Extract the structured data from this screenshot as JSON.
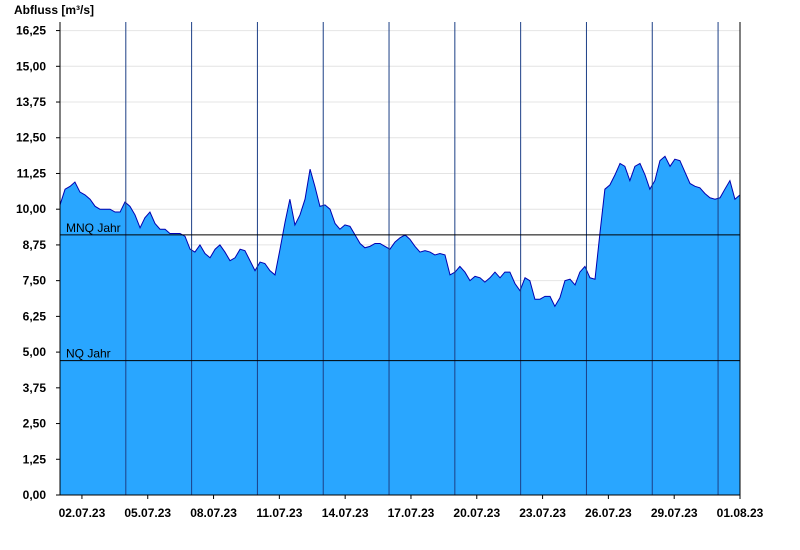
{
  "chart_data": {
    "type": "area",
    "y_axis_label": "Abfluss [m³/s]",
    "color": "#29a6ff",
    "line_color": "#0000b0",
    "grid": true,
    "xlim": [
      0,
      31
    ],
    "ylim": [
      0,
      16.55
    ],
    "xticks": [
      {
        "value": 1,
        "label": "02.07.23"
      },
      {
        "value": 4,
        "label": "05.07.23"
      },
      {
        "value": 7,
        "label": "08.07.23"
      },
      {
        "value": 10,
        "label": "11.07.23"
      },
      {
        "value": 13,
        "label": "14.07.23"
      },
      {
        "value": 16,
        "label": "17.07.23"
      },
      {
        "value": 19,
        "label": "20.07.23"
      },
      {
        "value": 22,
        "label": "23.07.23"
      },
      {
        "value": 25,
        "label": "26.07.23"
      },
      {
        "value": 28,
        "label": "29.07.23"
      },
      {
        "value": 31,
        "label": "01.08.23"
      }
    ],
    "xgrid_lines": [
      3,
      6,
      9,
      12,
      15,
      18,
      21,
      24,
      27,
      30
    ],
    "yticks": [
      {
        "value": 0,
        "label": "0,00"
      },
      {
        "value": 1.25,
        "label": "1,25"
      },
      {
        "value": 2.5,
        "label": "2,50"
      },
      {
        "value": 3.75,
        "label": "3,75"
      },
      {
        "value": 5,
        "label": "5,00"
      },
      {
        "value": 6.25,
        "label": "6,25"
      },
      {
        "value": 7.5,
        "label": "7,50"
      },
      {
        "value": 8.75,
        "label": "8,75"
      },
      {
        "value": 10,
        "label": "10,00"
      },
      {
        "value": 11.25,
        "label": "11,25"
      },
      {
        "value": 12.5,
        "label": "12,50"
      },
      {
        "value": 13.75,
        "label": "13,75"
      },
      {
        "value": 15,
        "label": "15,00"
      },
      {
        "value": 16.25,
        "label": "16,25"
      }
    ],
    "reference_lines": [
      {
        "label": "MNQ Jahr",
        "value": 9.1
      },
      {
        "label": "NQ Jahr",
        "value": 4.7
      }
    ],
    "x": [
      0,
      0.23,
      0.46,
      0.68,
      0.91,
      1.14,
      1.37,
      1.6,
      1.82,
      2.05,
      2.28,
      2.51,
      2.74,
      2.96,
      3.19,
      3.42,
      3.65,
      3.87,
      4.1,
      4.33,
      4.56,
      4.79,
      5.01,
      5.24,
      5.47,
      5.7,
      5.93,
      6.15,
      6.38,
      6.61,
      6.84,
      7.07,
      7.29,
      7.52,
      7.75,
      7.98,
      8.21,
      8.43,
      8.66,
      8.89,
      9.12,
      9.34,
      9.57,
      9.8,
      10.03,
      10.26,
      10.48,
      10.71,
      10.94,
      11.17,
      11.4,
      11.62,
      11.85,
      12.08,
      12.31,
      12.54,
      12.76,
      12.99,
      13.22,
      13.45,
      13.68,
      13.9,
      14.13,
      14.36,
      14.59,
      14.81,
      15.04,
      15.27,
      15.5,
      15.73,
      15.95,
      16.18,
      16.41,
      16.64,
      16.87,
      17.09,
      17.32,
      17.55,
      17.78,
      18.01,
      18.23,
      18.46,
      18.69,
      18.92,
      19.15,
      19.37,
      19.6,
      19.83,
      20.06,
      20.28,
      20.51,
      20.74,
      20.97,
      21.2,
      21.42,
      21.65,
      21.88,
      22.11,
      22.34,
      22.56,
      22.79,
      23.02,
      23.25,
      23.48,
      23.7,
      23.93,
      24.16,
      24.39,
      24.62,
      24.84,
      25.07,
      25.3,
      25.53,
      25.75,
      25.98,
      26.21,
      26.44,
      26.67,
      26.89,
      27.12,
      27.35,
      27.58,
      27.81,
      28.03,
      28.26,
      28.49,
      28.72,
      28.95,
      29.17,
      29.4,
      29.63,
      29.86,
      30.09,
      30.31,
      30.54,
      30.77,
      31
    ],
    "values": [
      10.15,
      10.7,
      10.8,
      10.95,
      10.6,
      10.5,
      10.35,
      10.1,
      10,
      10,
      10,
      9.9,
      9.9,
      10.25,
      10.1,
      9.8,
      9.35,
      9.7,
      9.9,
      9.5,
      9.3,
      9.3,
      9.15,
      9.15,
      9.15,
      9.05,
      8.6,
      8.5,
      8.75,
      8.45,
      8.3,
      8.6,
      8.75,
      8.5,
      8.2,
      8.3,
      8.6,
      8.55,
      8.2,
      7.85,
      8.15,
      8.1,
      7.85,
      7.7,
      8.6,
      9.55,
      10.35,
      9.45,
      9.8,
      10.35,
      11.4,
      10.8,
      10.1,
      10.15,
      10,
      9.5,
      9.3,
      9.45,
      9.4,
      9.1,
      8.8,
      8.65,
      8.7,
      8.8,
      8.8,
      8.7,
      8.6,
      8.85,
      9,
      9.1,
      8.95,
      8.7,
      8.5,
      8.55,
      8.5,
      8.4,
      8.45,
      8.4,
      7.7,
      7.8,
      8,
      7.8,
      7.5,
      7.65,
      7.6,
      7.45,
      7.6,
      7.8,
      7.6,
      7.8,
      7.8,
      7.4,
      7.15,
      7.6,
      7.5,
      6.85,
      6.85,
      6.95,
      6.95,
      6.6,
      6.9,
      7.5,
      7.55,
      7.35,
      7.8,
      8,
      7.6,
      7.55,
      9.2,
      10.7,
      10.85,
      11.2,
      11.6,
      11.5,
      11,
      11.5,
      11.6,
      11.2,
      10.7,
      11,
      11.7,
      11.85,
      11.5,
      11.75,
      11.7,
      11.3,
      10.9,
      10.8,
      10.75,
      10.55,
      10.4,
      10.35,
      10.4,
      10.7,
      11,
      10.35,
      10.5
    ]
  }
}
